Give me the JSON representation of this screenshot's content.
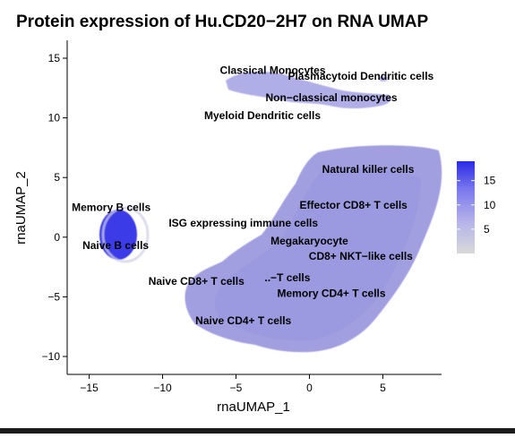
{
  "chart_data": {
    "type": "scatter",
    "title": "Protein expression of Hu.CD20−2H7 on RNA UMAP",
    "xlabel": "rnaUMAP_1",
    "ylabel": "rnaUMAP_2",
    "xlim": [
      -16.5,
      9
    ],
    "ylim": [
      -11.5,
      16.5
    ],
    "x_ticks": [
      -15,
      -10,
      -5,
      0,
      5
    ],
    "x_tick_labels": [
      "−15",
      "−10",
      "−5",
      "0",
      "5"
    ],
    "y_ticks": [
      -10,
      -5,
      0,
      5,
      10,
      15
    ],
    "y_tick_labels": [
      "−10",
      "−5",
      "0",
      "5",
      "10",
      "15"
    ],
    "grid": false,
    "legend_placement": "right",
    "color_scale": {
      "low": "#d9d9d9",
      "high": "#2a2ae6",
      "ticks": [
        5,
        10,
        15
      ],
      "tick_labels": [
        "5",
        "10",
        "15"
      ],
      "min": 0,
      "max": 19
    },
    "clusters": [
      {
        "label": "Classical Monocytes",
        "x": -2.5,
        "y": 14,
        "expression": 3
      },
      {
        "label": "Plasmacytoid Dendritic cells",
        "x": 3.5,
        "y": 13.5,
        "expression": 3
      },
      {
        "label": "Non−classical monocytes",
        "x": 1.5,
        "y": 11.7,
        "expression": 3
      },
      {
        "label": "Myeloid Dendritic cells",
        "x": -3.2,
        "y": 10.2,
        "expression": 3
      },
      {
        "label": "Natural killer  cells",
        "x": 4.0,
        "y": 5.7,
        "expression": 5
      },
      {
        "label": "Memory B cells",
        "x": -13.5,
        "y": 2.5,
        "expression": 18
      },
      {
        "label": "Effector CD8+ T cells",
        "x": 3.0,
        "y": 2.7,
        "expression": 5
      },
      {
        "label": "ISG expressing immune cells",
        "x": -4.5,
        "y": 1.2,
        "expression": 4
      },
      {
        "label": "Megakaryocyte",
        "x": 0.0,
        "y": -0.3,
        "expression": 4
      },
      {
        "label": "Naive B cells",
        "x": -13.2,
        "y": -0.7,
        "expression": 19
      },
      {
        "label": "CD8+ NKT−like cells",
        "x": 3.5,
        "y": -1.6,
        "expression": 5
      },
      {
        "label": "Naive CD8+ T cells",
        "x": -7.7,
        "y": -3.7,
        "expression": 5
      },
      {
        "label": "..−T cells",
        "x": -1.5,
        "y": -3.4,
        "expression": 5
      },
      {
        "label": "Memory CD4+ T cells",
        "x": 1.5,
        "y": -4.7,
        "expression": 5
      },
      {
        "label": "Naive CD4+ T cells",
        "x": -4.5,
        "y": -7.0,
        "expression": 5
      }
    ]
  }
}
